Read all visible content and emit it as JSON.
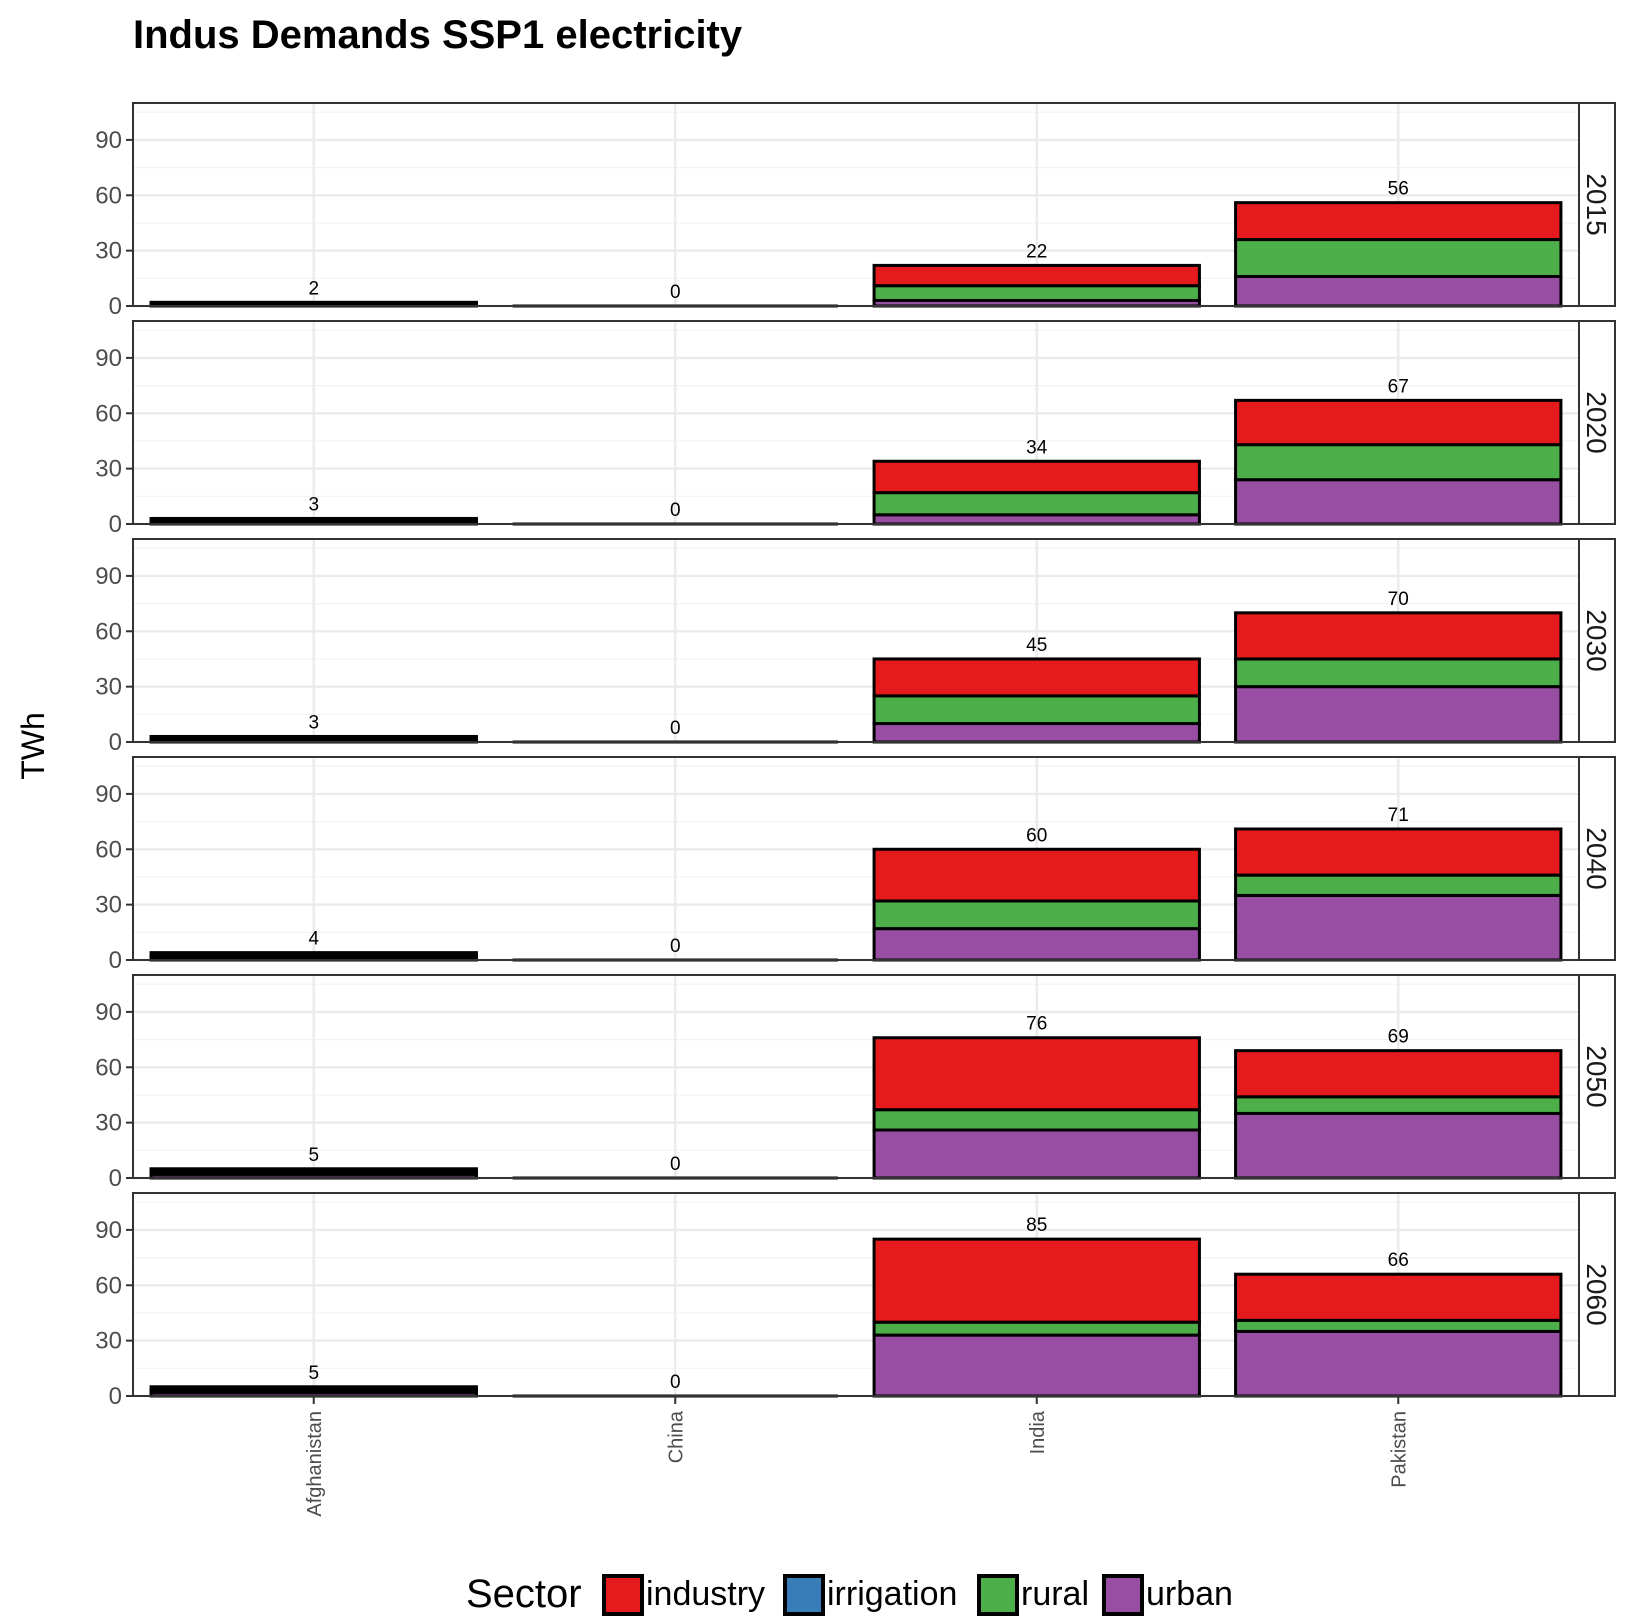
{
  "chart_data": {
    "type": "bar",
    "stacked": true,
    "title": "Indus Demands SSP1 electricity",
    "xlabel": "",
    "ylabel": "TWh",
    "ylim": [
      0,
      110
    ],
    "yticks": [
      0,
      30,
      60,
      90
    ],
    "categories": [
      "Afghanistan",
      "China",
      "India",
      "Pakistan"
    ],
    "legend": {
      "title": "Sector",
      "position": "bottom",
      "entries": [
        {
          "name": "industry",
          "color": "#e41a1c"
        },
        {
          "name": "irrigation",
          "color": "#377eb8"
        },
        {
          "name": "rural",
          "color": "#4daf4a"
        },
        {
          "name": "urban",
          "color": "#984ea3"
        }
      ]
    },
    "panels": [
      {
        "label": "2015",
        "totals": [
          2,
          0,
          22,
          56
        ],
        "series": [
          {
            "name": "urban",
            "values": [
              0.5,
              0,
              3,
              16
            ]
          },
          {
            "name": "rural",
            "values": [
              1,
              0,
              8,
              20
            ]
          },
          {
            "name": "irrigation",
            "values": [
              0,
              0,
              0,
              0
            ]
          },
          {
            "name": "industry",
            "values": [
              0.5,
              0,
              11,
              20
            ]
          }
        ]
      },
      {
        "label": "2020",
        "totals": [
          3,
          0,
          34,
          67
        ],
        "series": [
          {
            "name": "urban",
            "values": [
              1,
              0,
              5,
              24
            ]
          },
          {
            "name": "rural",
            "values": [
              1,
              0,
              12,
              19
            ]
          },
          {
            "name": "irrigation",
            "values": [
              0,
              0,
              0,
              0
            ]
          },
          {
            "name": "industry",
            "values": [
              1,
              0,
              17,
              24
            ]
          }
        ]
      },
      {
        "label": "2030",
        "totals": [
          3,
          0,
          45,
          70
        ],
        "series": [
          {
            "name": "urban",
            "values": [
              1,
              0,
              10,
              30
            ]
          },
          {
            "name": "rural",
            "values": [
              1,
              0,
              15,
              15
            ]
          },
          {
            "name": "irrigation",
            "values": [
              0,
              0,
              0,
              0
            ]
          },
          {
            "name": "industry",
            "values": [
              1,
              0,
              20,
              25
            ]
          }
        ]
      },
      {
        "label": "2040",
        "totals": [
          4,
          0,
          60,
          71
        ],
        "series": [
          {
            "name": "urban",
            "values": [
              1.5,
              0,
              17,
              35
            ]
          },
          {
            "name": "rural",
            "values": [
              1,
              0,
              15,
              11
            ]
          },
          {
            "name": "irrigation",
            "values": [
              0,
              0,
              0,
              0
            ]
          },
          {
            "name": "industry",
            "values": [
              1.5,
              0,
              28,
              25
            ]
          }
        ]
      },
      {
        "label": "2050",
        "totals": [
          5,
          0,
          76,
          69
        ],
        "series": [
          {
            "name": "urban",
            "values": [
              2,
              0,
              26,
              35
            ]
          },
          {
            "name": "rural",
            "values": [
              1.5,
              0,
              11,
              9
            ]
          },
          {
            "name": "irrigation",
            "values": [
              0,
              0,
              0,
              0
            ]
          },
          {
            "name": "industry",
            "values": [
              1.5,
              0,
              39,
              25
            ]
          }
        ]
      },
      {
        "label": "2060",
        "totals": [
          5,
          0,
          85,
          66
        ],
        "series": [
          {
            "name": "urban",
            "values": [
              2,
              0,
              33,
              35
            ]
          },
          {
            "name": "rural",
            "values": [
              1.5,
              0,
              7,
              6
            ]
          },
          {
            "name": "irrigation",
            "values": [
              0,
              0,
              0,
              0
            ]
          },
          {
            "name": "industry",
            "values": [
              1.5,
              0,
              45,
              25
            ]
          }
        ]
      }
    ]
  }
}
